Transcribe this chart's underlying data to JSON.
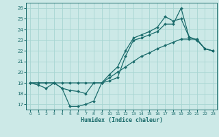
{
  "xlabel": "Humidex (Indice chaleur)",
  "xlim": [
    -0.5,
    23.5
  ],
  "ylim": [
    16.5,
    26.5
  ],
  "xticks": [
    0,
    1,
    2,
    3,
    4,
    5,
    6,
    7,
    8,
    9,
    10,
    11,
    12,
    13,
    14,
    15,
    16,
    17,
    18,
    19,
    20,
    21,
    22,
    23
  ],
  "yticks": [
    17,
    18,
    19,
    20,
    21,
    22,
    23,
    24,
    25,
    26
  ],
  "bg_color": "#cce9e7",
  "grid_color": "#a8d5d2",
  "line_color": "#1a6b6b",
  "line1_x": [
    0,
    1,
    2,
    3,
    4,
    5,
    6,
    7,
    8,
    9,
    10,
    11,
    12,
    13,
    14,
    15,
    16,
    17,
    18,
    19,
    20,
    21,
    22,
    23
  ],
  "line1_y": [
    19.0,
    19.0,
    19.0,
    19.0,
    19.0,
    19.0,
    19.0,
    19.0,
    19.0,
    19.0,
    19.5,
    20.0,
    20.5,
    21.0,
    21.5,
    21.8,
    22.2,
    22.5,
    22.8,
    23.1,
    23.1,
    23.1,
    22.2,
    22.0
  ],
  "line2_x": [
    0,
    1,
    2,
    3,
    4,
    5,
    6,
    7,
    8,
    9,
    10,
    11,
    12,
    13,
    14,
    15,
    16,
    17,
    18,
    19,
    20,
    21,
    22,
    23
  ],
  "line2_y": [
    19.0,
    18.8,
    18.5,
    19.0,
    18.5,
    16.8,
    16.8,
    17.0,
    17.3,
    19.0,
    19.2,
    19.5,
    21.5,
    23.0,
    23.2,
    23.5,
    23.8,
    24.5,
    24.5,
    26.0,
    23.3,
    23.0,
    22.2,
    22.0
  ],
  "line3_x": [
    0,
    1,
    2,
    3,
    4,
    5,
    6,
    7,
    8,
    9,
    10,
    11,
    12,
    13,
    14,
    15,
    16,
    17,
    18,
    19,
    20,
    21,
    22,
    23
  ],
  "line3_y": [
    19.0,
    19.0,
    19.0,
    19.0,
    18.5,
    18.3,
    18.2,
    18.0,
    19.0,
    19.0,
    19.8,
    20.5,
    22.0,
    23.2,
    23.5,
    23.8,
    24.2,
    25.2,
    24.8,
    25.0,
    23.3,
    23.0,
    22.2,
    22.0
  ]
}
